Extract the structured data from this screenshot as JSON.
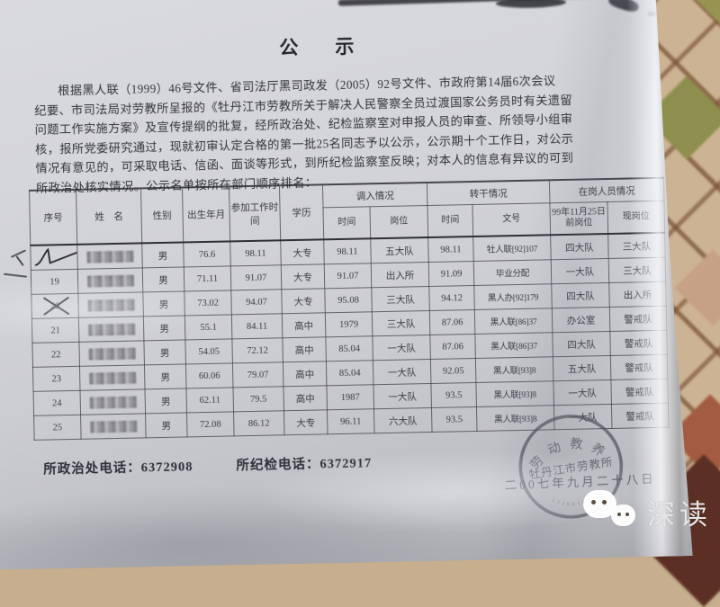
{
  "document": {
    "title": "公　示",
    "paragraph_lines": [
      "根据黑人联（1999）46号文件、省司法厅黑司政发（2005）92号文件、市政府第14届6次会议",
      "纪要、市司法局对劳教所呈报的《牡丹江市劳教所关于解决人民警察全员过渡国家公务员时有关遗留",
      "问题工作实施方案》及宣传提纲的批复，经所政治处、纪检监察室对申报人员的审查、所领导小组审",
      "核，报所党委研究通过，现就初审认定合格的第一批25名同志予以公示，公示期十个工作日，对公示",
      "情况有意见的，可采取电话、信函、面谈等形式，到所纪检监察室反映；对本人的信息有异议的可到",
      "所政治处核实情况。公示名单按所在部门顺序排名："
    ],
    "table": {
      "headers": {
        "serial": "序号",
        "name": "姓　名",
        "gender": "性别",
        "birth": "出生年月",
        "work_start": "参加工作时间",
        "education": "学历",
        "transfer_group": "调入情况",
        "cadre_group": "转干情况",
        "staff_group": "在岗人员情况",
        "sub_time1": "时间",
        "sub_position": "岗位",
        "sub_time2": "时间",
        "sub_doc": "文号",
        "sub_pos_before": "99年11月25日前岗位",
        "sub_pos_now": "现岗位"
      },
      "rows": [
        {
          "serial": "",
          "mark": "scribble",
          "name": "",
          "gender": "男",
          "birth": "76.6",
          "work_start": "98.11",
          "education": "大专",
          "transfer_time": "98.11",
          "transfer_position": "五大队",
          "cadre_time": "98.11",
          "cadre_doc": "牡人联[92]107",
          "position_1999": "四大队",
          "position_now": "三大队"
        },
        {
          "serial": "19",
          "mark": "",
          "name": "",
          "gender": "男",
          "birth": "71.11",
          "work_start": "91.07",
          "education": "大专",
          "transfer_time": "91.07",
          "transfer_position": "出入所",
          "cadre_time": "91.09",
          "cadre_doc": "毕业分配",
          "position_1999": "一大队",
          "position_now": "三大队"
        },
        {
          "serial": "20",
          "mark": "cross",
          "name": "",
          "gender": "男",
          "birth": "73.02",
          "work_start": "94.07",
          "education": "大专",
          "transfer_time": "95.08",
          "transfer_position": "三大队",
          "cadre_time": "94.12",
          "cadre_doc": "黑人办[92]179",
          "position_1999": "四大队",
          "position_now": "出入所"
        },
        {
          "serial": "21",
          "mark": "",
          "name": "",
          "gender": "男",
          "birth": "55.1",
          "work_start": "84.11",
          "education": "高中",
          "transfer_time": "1979",
          "transfer_position": "三大队",
          "cadre_time": "87.06",
          "cadre_doc": "黑人联[86]37",
          "position_1999": "办公室",
          "position_now": "警戒队"
        },
        {
          "serial": "22",
          "mark": "",
          "name": "",
          "gender": "男",
          "birth": "54.05",
          "work_start": "72.12",
          "education": "高中",
          "transfer_time": "85.04",
          "transfer_position": "一大队",
          "cadre_time": "87.06",
          "cadre_doc": "黑人联[86]37",
          "position_1999": "四大队",
          "position_now": "警戒队"
        },
        {
          "serial": "23",
          "mark": "",
          "name": "",
          "gender": "男",
          "birth": "60.06",
          "work_start": "79.07",
          "education": "高中",
          "transfer_time": "85.04",
          "transfer_position": "一大队",
          "cadre_time": "92.05",
          "cadre_doc": "黑人联[93]8",
          "position_1999": "五大队",
          "position_now": "警戒队"
        },
        {
          "serial": "24",
          "mark": "",
          "name": "",
          "gender": "男",
          "birth": "62.11",
          "work_start": "79.5",
          "education": "高中",
          "transfer_time": "1987",
          "transfer_position": "一大队",
          "cadre_time": "93.5",
          "cadre_doc": "黑人联[93]8",
          "position_1999": "一大队",
          "position_now": "警戒队"
        },
        {
          "serial": "25",
          "mark": "",
          "name": "",
          "gender": "男",
          "birth": "72.08",
          "work_start": "86.12",
          "education": "大专",
          "transfer_time": "96.11",
          "transfer_position": "六大队",
          "cadre_time": "93.5",
          "cadre_doc": "黑人联[93]8",
          "position_1999": "一大队",
          "position_now": "警戒队"
        }
      ]
    },
    "footer": {
      "politics_label": "所政治处电话：",
      "politics_phone": "6372908",
      "discipline_label": "所纪检电话：",
      "discipline_phone": "6372917"
    },
    "stamp": {
      "arc_text": "劳动教养",
      "org_name": "牡丹江市劳教所",
      "code": "2310010012",
      "date": "二00七年九月二十八日"
    }
  },
  "watermark": {
    "brand": "深读"
  },
  "colors": {
    "paper": "#d4d5d9",
    "ink": "#3a3a42",
    "stamp_ink": "#4d4d57",
    "tile_base": "#cdb392",
    "tile_olive": "#8e8e4b",
    "tile_red": "#a65a40",
    "tile_dark": "#5d2f22",
    "watermark_text": "#e6e6e6"
  }
}
